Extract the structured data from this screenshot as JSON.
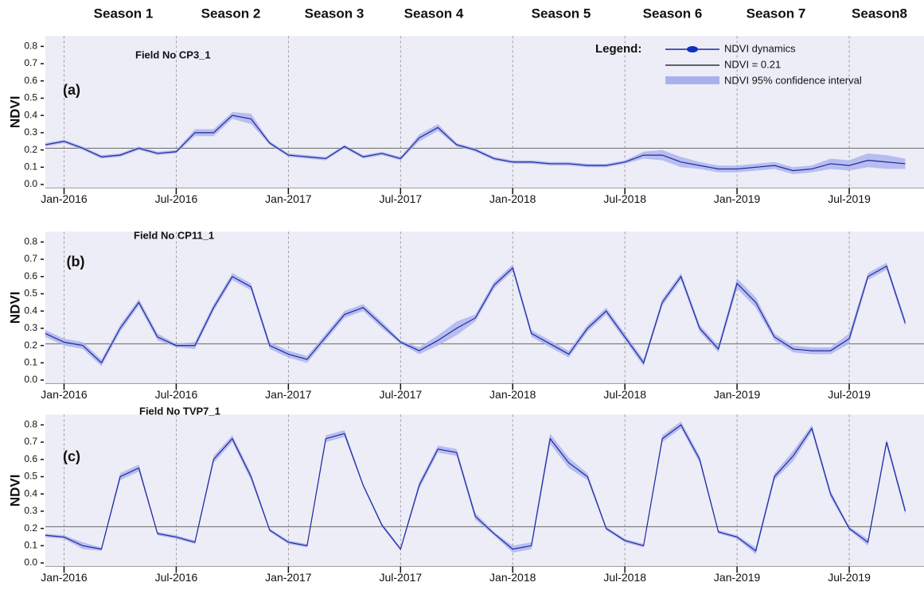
{
  "seasons": [
    "Season 1",
    "Season 2",
    "Season 3",
    "Season 4",
    "Season 5",
    "Season 6",
    "Season 7",
    "Season8"
  ],
  "chart_data": [
    {
      "type": "line",
      "panel_label": "(a)",
      "annotation": "Field No CP3_1",
      "y_label": "NDVI",
      "legend_title": "Legend:",
      "threshold_name": "NDVI = 0.21",
      "ci_name": "NDVI 95% confidence interval",
      "threshold": 0.21,
      "line_color": "#1a2a9c",
      "band_color": "#aab0ee",
      "threshold_color": "#777777",
      "x": [
        "2015-12",
        "2016-01",
        "2016-02",
        "2016-03",
        "2016-04",
        "2016-05",
        "2016-06",
        "2016-07",
        "2016-08",
        "2016-09",
        "2016-10",
        "2016-11",
        "2016-12",
        "2017-01",
        "2017-02",
        "2017-03",
        "2017-04",
        "2017-05",
        "2017-06",
        "2017-07",
        "2017-08",
        "2017-09",
        "2017-10",
        "2017-11",
        "2017-12",
        "2018-01",
        "2018-02",
        "2018-03",
        "2018-04",
        "2018-05",
        "2018-06",
        "2018-07",
        "2018-08",
        "2018-09",
        "2018-10",
        "2018-11",
        "2018-12",
        "2019-01",
        "2019-02",
        "2019-03",
        "2019-04",
        "2019-05",
        "2019-06",
        "2019-07",
        "2019-08",
        "2019-09",
        "2019-10"
      ],
      "series": [
        {
          "name": "NDVI dynamics",
          "color": "#1a2a9c",
          "values": [
            0.23,
            0.25,
            0.21,
            0.16,
            0.17,
            0.21,
            0.18,
            0.19,
            0.3,
            0.3,
            0.4,
            0.38,
            0.24,
            0.17,
            0.16,
            0.15,
            0.22,
            0.16,
            0.18,
            0.15,
            0.27,
            0.33,
            0.23,
            0.2,
            0.15,
            0.13,
            0.13,
            0.12,
            0.12,
            0.11,
            0.11,
            0.13,
            0.17,
            0.17,
            0.13,
            0.11,
            0.09,
            0.09,
            0.1,
            0.11,
            0.08,
            0.09,
            0.12,
            0.11,
            0.14,
            0.13,
            0.12
          ],
          "ci": [
            0.01,
            0.01,
            0.01,
            0.01,
            0.01,
            0.01,
            0.01,
            0.01,
            0.02,
            0.02,
            0.02,
            0.03,
            0.01,
            0.01,
            0.01,
            0.01,
            0.01,
            0.01,
            0.01,
            0.01,
            0.02,
            0.02,
            0.01,
            0.01,
            0.01,
            0.01,
            0.01,
            0.01,
            0.01,
            0.01,
            0.01,
            0.01,
            0.02,
            0.03,
            0.03,
            0.02,
            0.02,
            0.02,
            0.02,
            0.02,
            0.02,
            0.02,
            0.03,
            0.03,
            0.04,
            0.04,
            0.03
          ]
        }
      ],
      "xlim": [
        "2015-12",
        "2019-11"
      ],
      "xticks": [
        {
          "value": "2016-01",
          "label": "Jan-2016"
        },
        {
          "value": "2016-07",
          "label": "Jul-2016"
        },
        {
          "value": "2017-01",
          "label": "Jan-2017"
        },
        {
          "value": "2017-07",
          "label": "Jul-2017"
        },
        {
          "value": "2018-01",
          "label": "Jan-2018"
        },
        {
          "value": "2018-07",
          "label": "Jul-2018"
        },
        {
          "value": "2019-01",
          "label": "Jan-2019"
        },
        {
          "value": "2019-07",
          "label": "Jul-2019"
        }
      ],
      "ylim": [
        -0.02,
        0.86
      ],
      "yticks": [
        {
          "value": 0,
          "label": "0.0"
        },
        0.1,
        0.2,
        0.3,
        0.4,
        0.5,
        0.6,
        0.7,
        0.8
      ]
    },
    {
      "type": "line",
      "panel_label": "(b)",
      "annotation": "Field No CP11_1",
      "y_label": "NDVI",
      "threshold": 0.21,
      "line_color": "#1a2a9c",
      "band_color": "#aab0ee",
      "threshold_color": "#777777",
      "x": [
        "2015-12",
        "2016-01",
        "2016-02",
        "2016-03",
        "2016-04",
        "2016-05",
        "2016-06",
        "2016-07",
        "2016-08",
        "2016-09",
        "2016-10",
        "2016-11",
        "2016-12",
        "2017-01",
        "2017-02",
        "2017-03",
        "2017-04",
        "2017-05",
        "2017-06",
        "2017-07",
        "2017-08",
        "2017-09",
        "2017-10",
        "2017-11",
        "2017-12",
        "2018-01",
        "2018-02",
        "2018-03",
        "2018-04",
        "2018-05",
        "2018-06",
        "2018-07",
        "2018-08",
        "2018-09",
        "2018-10",
        "2018-11",
        "2018-12",
        "2019-01",
        "2019-02",
        "2019-03",
        "2019-04",
        "2019-05",
        "2019-06",
        "2019-07",
        "2019-08",
        "2019-09",
        "2019-10"
      ],
      "series": [
        {
          "color": "#1a2a9c",
          "values": [
            0.27,
            0.22,
            0.2,
            0.1,
            0.3,
            0.45,
            0.25,
            0.2,
            0.2,
            0.42,
            0.6,
            0.54,
            0.2,
            0.15,
            0.12,
            0.25,
            0.38,
            0.42,
            0.32,
            0.22,
            0.17,
            0.23,
            0.3,
            0.36,
            0.55,
            0.65,
            0.27,
            0.21,
            0.15,
            0.3,
            0.4,
            0.25,
            0.1,
            0.45,
            0.6,
            0.3,
            0.18,
            0.56,
            0.45,
            0.25,
            0.18,
            0.17,
            0.17,
            0.24,
            0.6,
            0.66,
            0.33
          ],
          "ci": [
            0.02,
            0.02,
            0.02,
            0.02,
            0.02,
            0.02,
            0.02,
            0.01,
            0.02,
            0.02,
            0.02,
            0.02,
            0.02,
            0.02,
            0.02,
            0.02,
            0.02,
            0.02,
            0.02,
            0.01,
            0.02,
            0.03,
            0.04,
            0.02,
            0.02,
            0.02,
            0.02,
            0.02,
            0.02,
            0.02,
            0.02,
            0.02,
            0.02,
            0.02,
            0.02,
            0.02,
            0.02,
            0.03,
            0.03,
            0.02,
            0.02,
            0.02,
            0.02,
            0.03,
            0.02,
            0.02,
            0.02
          ]
        }
      ],
      "xlim": [
        "2015-12",
        "2019-11"
      ],
      "xticks": [
        {
          "value": "2016-01",
          "label": "Jan-2016"
        },
        {
          "value": "2016-07",
          "label": "Jul-2016"
        },
        {
          "value": "2017-01",
          "label": "Jan-2017"
        },
        {
          "value": "2017-07",
          "label": "Jul-2017"
        },
        {
          "value": "2018-01",
          "label": "Jan-2018"
        },
        {
          "value": "2018-07",
          "label": "Jul-2018"
        },
        {
          "value": "2019-01",
          "label": "Jan-2019"
        },
        {
          "value": "2019-07",
          "label": "Jul-2019"
        }
      ],
      "ylim": [
        -0.02,
        0.86
      ],
      "yticks": [
        {
          "value": 0,
          "label": "0.0"
        },
        0.1,
        0.2,
        0.3,
        0.4,
        0.5,
        0.6,
        0.7,
        0.8
      ]
    },
    {
      "type": "line",
      "panel_label": "(c)",
      "annotation": "Field No TVP7_1",
      "y_label": "NDVI",
      "threshold": 0.21,
      "line_color": "#1a2a9c",
      "band_color": "#aab0ee",
      "threshold_color": "#777777",
      "x": [
        "2015-12",
        "2016-01",
        "2016-02",
        "2016-03",
        "2016-04",
        "2016-05",
        "2016-06",
        "2016-07",
        "2016-08",
        "2016-09",
        "2016-10",
        "2016-11",
        "2016-12",
        "2017-01",
        "2017-02",
        "2017-03",
        "2017-04",
        "2017-05",
        "2017-06",
        "2017-07",
        "2017-08",
        "2017-09",
        "2017-10",
        "2017-11",
        "2017-12",
        "2018-01",
        "2018-02",
        "2018-03",
        "2018-04",
        "2018-05",
        "2018-06",
        "2018-07",
        "2018-08",
        "2018-09",
        "2018-10",
        "2018-11",
        "2018-12",
        "2019-01",
        "2019-02",
        "2019-03",
        "2019-04",
        "2019-05",
        "2019-06",
        "2019-07",
        "2019-08",
        "2019-09",
        "2019-10"
      ],
      "series": [
        {
          "color": "#1a2a9c",
          "values": [
            0.16,
            0.15,
            0.1,
            0.08,
            0.5,
            0.55,
            0.17,
            0.15,
            0.12,
            0.6,
            0.72,
            0.5,
            0.19,
            0.12,
            0.1,
            0.72,
            0.75,
            0.45,
            0.22,
            0.08,
            0.45,
            0.66,
            0.64,
            0.27,
            0.17,
            0.08,
            0.1,
            0.72,
            0.58,
            0.5,
            0.2,
            0.13,
            0.1,
            0.72,
            0.8,
            0.6,
            0.18,
            0.15,
            0.07,
            0.5,
            0.62,
            0.78,
            0.4,
            0.2,
            0.12,
            0.7,
            0.3
          ],
          "ci": [
            0.01,
            0.01,
            0.02,
            0.01,
            0.02,
            0.02,
            0.01,
            0.01,
            0.01,
            0.02,
            0.02,
            0.02,
            0.01,
            0.01,
            0.01,
            0.02,
            0.02,
            0.01,
            0.01,
            0.01,
            0.02,
            0.02,
            0.02,
            0.02,
            0.01,
            0.02,
            0.02,
            0.03,
            0.03,
            0.02,
            0.01,
            0.01,
            0.01,
            0.02,
            0.02,
            0.02,
            0.01,
            0.01,
            0.02,
            0.02,
            0.03,
            0.02,
            0.02,
            0.01,
            0.02,
            0.02,
            0.02
          ]
        }
      ],
      "xlim": [
        "2015-12",
        "2019-11"
      ],
      "xticks": [
        {
          "value": "2016-01",
          "label": "Jan-2016"
        },
        {
          "value": "2016-07",
          "label": "Jul-2016"
        },
        {
          "value": "2017-01",
          "label": "Jan-2017"
        },
        {
          "value": "2017-07",
          "label": "Jul-2017"
        },
        {
          "value": "2018-01",
          "label": "Jan-2018"
        },
        {
          "value": "2018-07",
          "label": "Jul-2018"
        },
        {
          "value": "2019-01",
          "label": "Jan-2019"
        },
        {
          "value": "2019-07",
          "label": "Jul-2019"
        }
      ],
      "ylim": [
        -0.02,
        0.86
      ],
      "yticks": [
        {
          "value": 0,
          "label": "0.0"
        },
        0.1,
        0.2,
        0.3,
        0.4,
        0.5,
        0.6,
        0.7,
        0.8
      ]
    }
  ]
}
